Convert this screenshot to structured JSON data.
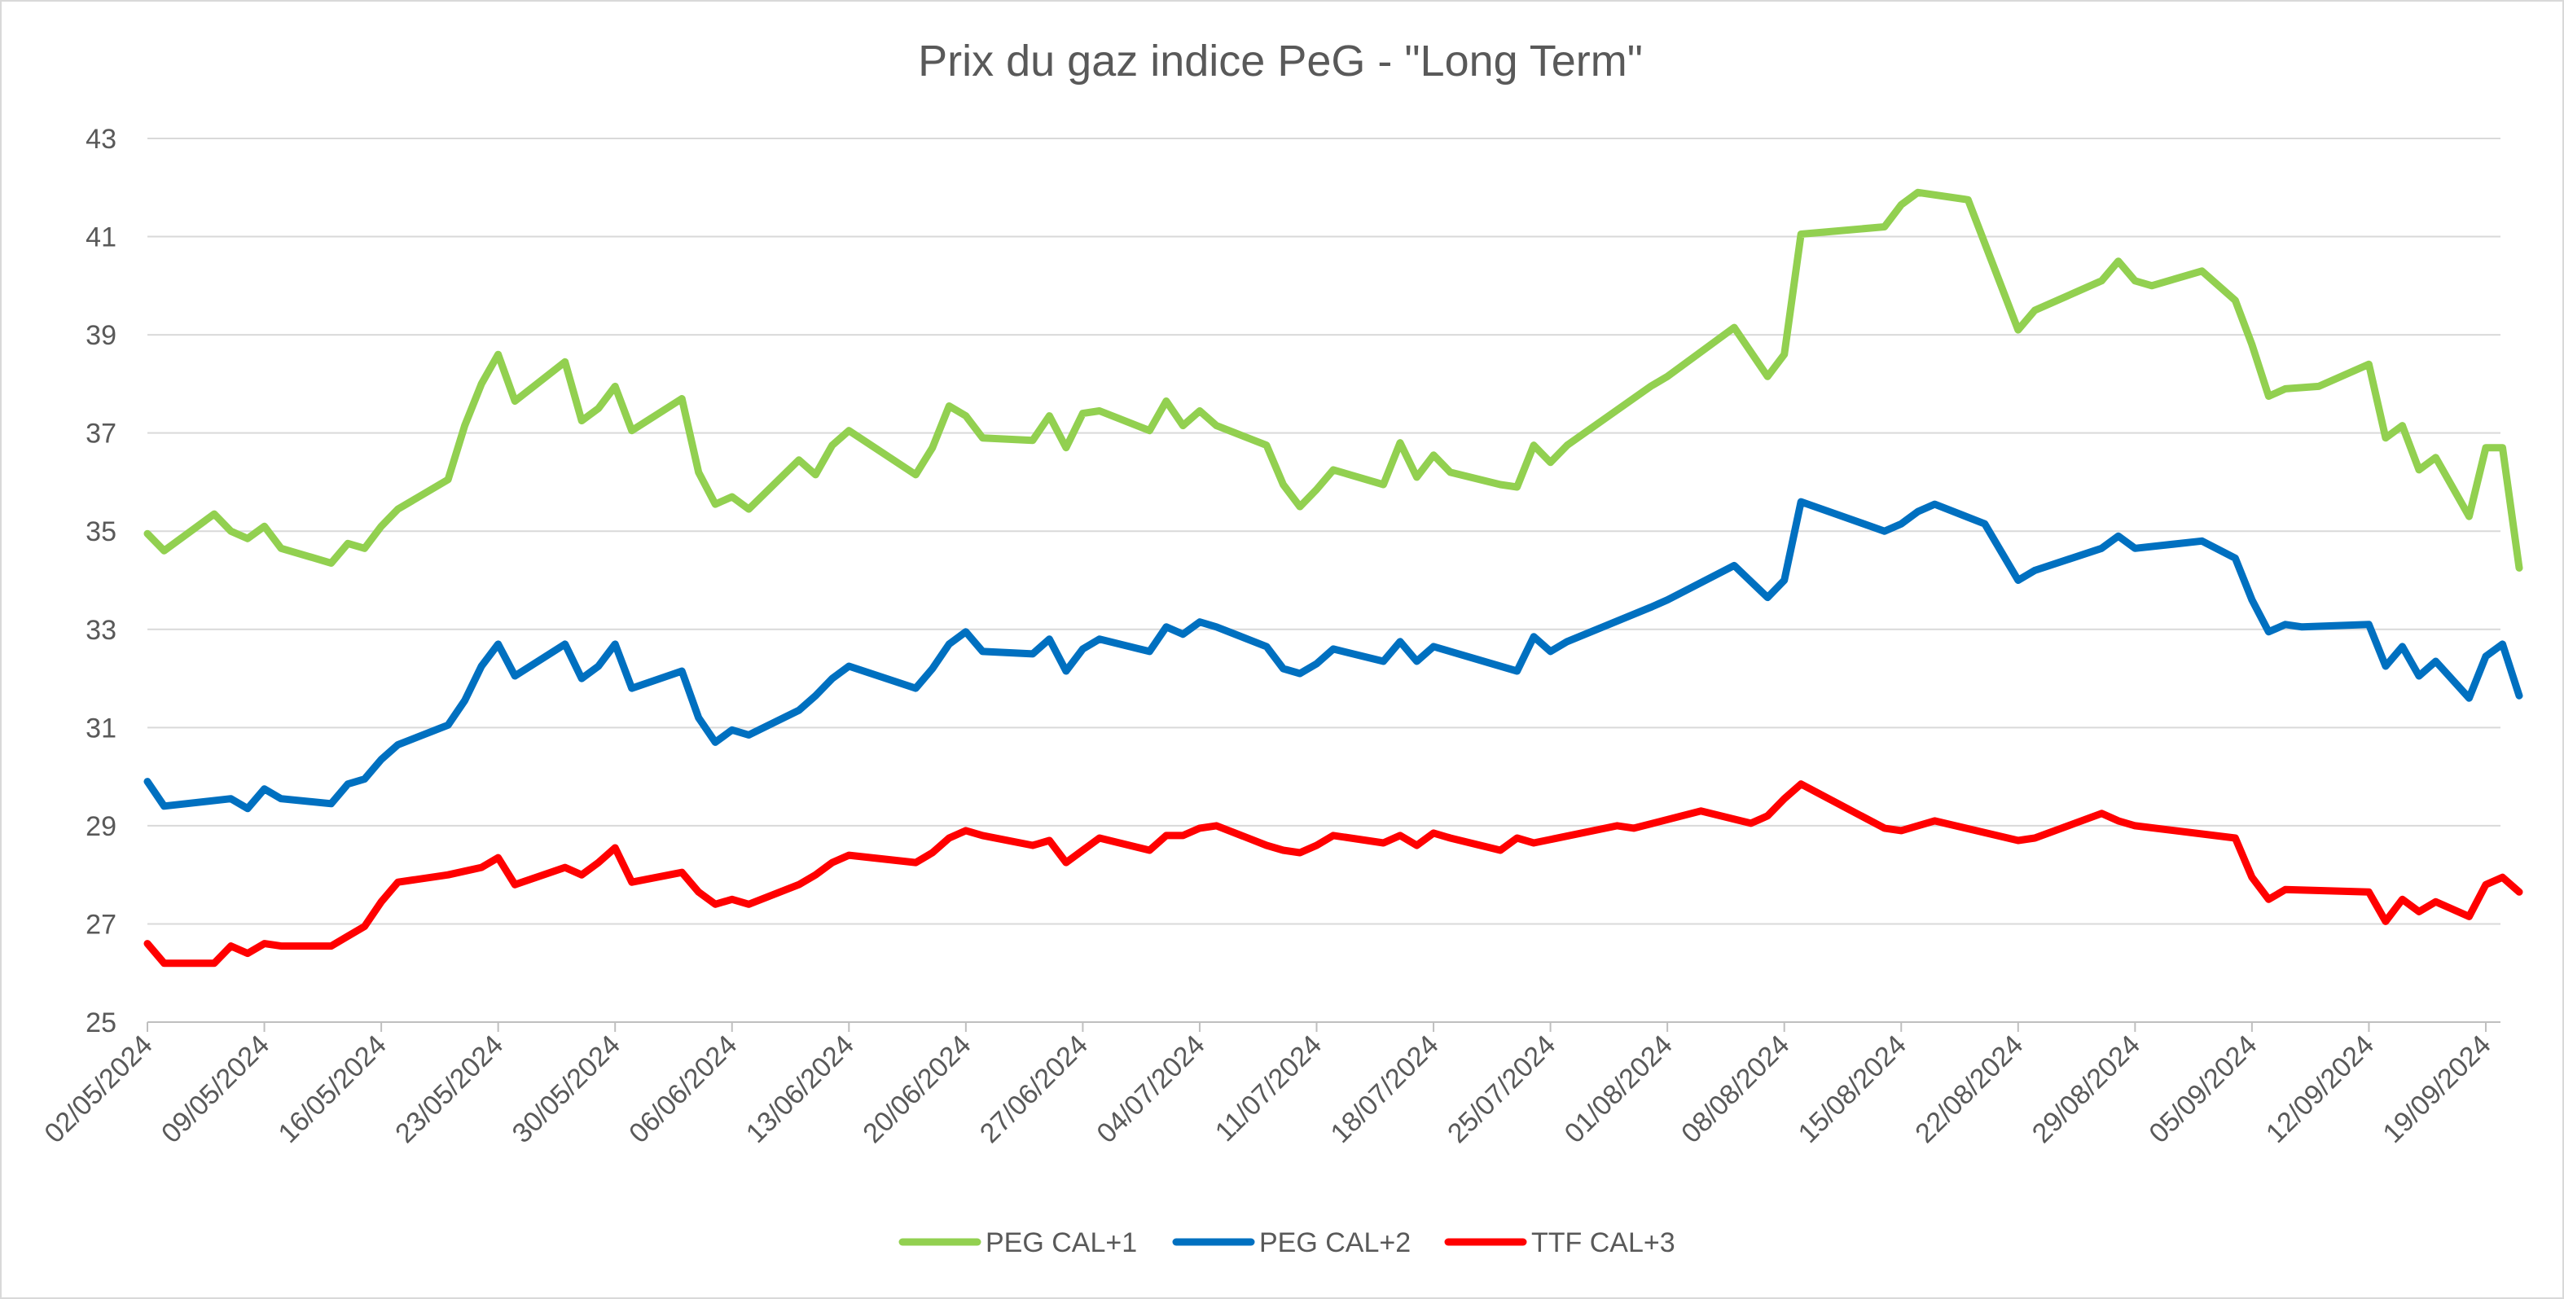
{
  "chart_data": {
    "type": "line",
    "title": "Prix du gaz indice PeG - \"Long Term\"",
    "xlabel": "",
    "ylabel": "",
    "ylim": [
      25,
      43
    ],
    "yticks": [
      "25",
      "27",
      "29",
      "31",
      "33",
      "35",
      "37",
      "39",
      "41",
      "43"
    ],
    "grid": true,
    "legend_position": "bottom",
    "x_start": "02/05/2024",
    "x_end": "19/09/2024",
    "xticks": [
      "02/05/2024",
      "09/05/2024",
      "16/05/2024",
      "23/05/2024",
      "30/05/2024",
      "06/06/2024",
      "13/06/2024",
      "20/06/2024",
      "27/06/2024",
      "04/07/2024",
      "11/07/2024",
      "18/07/2024",
      "25/07/2024",
      "01/08/2024",
      "08/08/2024",
      "15/08/2024",
      "22/08/2024",
      "29/08/2024",
      "05/09/2024",
      "12/09/2024",
      "19/09/2024"
    ],
    "series": [
      {
        "name": "PEG CAL+1",
        "color": "#92d050",
        "points": [
          [
            "02/05/2024",
            34.95
          ],
          [
            "03/05/2024",
            34.6
          ],
          [
            "06/05/2024",
            35.35
          ],
          [
            "07/05/2024",
            35.0
          ],
          [
            "08/05/2024",
            34.85
          ],
          [
            "09/05/2024",
            35.1
          ],
          [
            "10/05/2024",
            34.65
          ],
          [
            "13/05/2024",
            34.35
          ],
          [
            "14/05/2024",
            34.75
          ],
          [
            "15/05/2024",
            34.65
          ],
          [
            "16/05/2024",
            35.1
          ],
          [
            "17/05/2024",
            35.45
          ],
          [
            "20/05/2024",
            36.05
          ],
          [
            "21/05/2024",
            37.15
          ],
          [
            "22/05/2024",
            38.0
          ],
          [
            "23/05/2024",
            38.6
          ],
          [
            "24/05/2024",
            37.65
          ],
          [
            "27/05/2024",
            38.45
          ],
          [
            "28/05/2024",
            37.25
          ],
          [
            "29/05/2024",
            37.5
          ],
          [
            "30/05/2024",
            37.95
          ],
          [
            "31/05/2024",
            37.05
          ],
          [
            "03/06/2024",
            37.7
          ],
          [
            "04/06/2024",
            36.2
          ],
          [
            "05/06/2024",
            35.55
          ],
          [
            "06/06/2024",
            35.7
          ],
          [
            "07/06/2024",
            35.45
          ],
          [
            "10/06/2024",
            36.45
          ],
          [
            "11/06/2024",
            36.15
          ],
          [
            "12/06/2024",
            36.75
          ],
          [
            "13/06/2024",
            37.05
          ],
          [
            "17/06/2024",
            36.15
          ],
          [
            "18/06/2024",
            36.7
          ],
          [
            "19/06/2024",
            37.55
          ],
          [
            "20/06/2024",
            37.35
          ],
          [
            "21/06/2024",
            36.9
          ],
          [
            "24/06/2024",
            36.85
          ],
          [
            "25/06/2024",
            37.35
          ],
          [
            "26/06/2024",
            36.7
          ],
          [
            "27/06/2024",
            37.4
          ],
          [
            "28/06/2024",
            37.45
          ],
          [
            "01/07/2024",
            37.05
          ],
          [
            "02/07/2024",
            37.65
          ],
          [
            "03/07/2024",
            37.15
          ],
          [
            "04/07/2024",
            37.45
          ],
          [
            "05/07/2024",
            37.15
          ],
          [
            "08/07/2024",
            36.75
          ],
          [
            "09/07/2024",
            35.95
          ],
          [
            "10/07/2024",
            35.5
          ],
          [
            "11/07/2024",
            35.85
          ],
          [
            "12/07/2024",
            36.25
          ],
          [
            "15/07/2024",
            35.95
          ],
          [
            "16/07/2024",
            36.8
          ],
          [
            "17/07/2024",
            36.1
          ],
          [
            "18/07/2024",
            36.55
          ],
          [
            "19/07/2024",
            36.2
          ],
          [
            "22/07/2024",
            35.95
          ],
          [
            "23/07/2024",
            35.9
          ],
          [
            "24/07/2024",
            36.75
          ],
          [
            "25/07/2024",
            36.4
          ],
          [
            "26/07/2024",
            36.75
          ],
          [
            "31/07/2024",
            37.95
          ],
          [
            "01/08/2024",
            38.15
          ],
          [
            "05/08/2024",
            39.15
          ],
          [
            "07/08/2024",
            38.15
          ],
          [
            "08/08/2024",
            38.6
          ],
          [
            "09/08/2024",
            41.05
          ],
          [
            "14/08/2024",
            41.2
          ],
          [
            "15/08/2024",
            41.65
          ],
          [
            "16/08/2024",
            41.9
          ],
          [
            "19/08/2024",
            41.75
          ],
          [
            "22/08/2024",
            39.1
          ],
          [
            "23/08/2024",
            39.5
          ],
          [
            "27/08/2024",
            40.1
          ],
          [
            "28/08/2024",
            40.5
          ],
          [
            "29/08/2024",
            40.1
          ],
          [
            "30/08/2024",
            40.0
          ],
          [
            "02/09/2024",
            40.3
          ],
          [
            "04/09/2024",
            39.7
          ],
          [
            "05/09/2024",
            38.8
          ],
          [
            "06/09/2024",
            37.75
          ],
          [
            "07/09/2024",
            37.9
          ],
          [
            "09/09/2024",
            37.95
          ],
          [
            "12/09/2024",
            38.4
          ],
          [
            "13/09/2024",
            36.9
          ],
          [
            "14/09/2024",
            37.15
          ],
          [
            "15/09/2024",
            36.25
          ],
          [
            "16/09/2024",
            36.5
          ],
          [
            "18/09/2024",
            35.3
          ],
          [
            "19/09/2024",
            36.7
          ],
          [
            "20/09/2024",
            36.7
          ],
          [
            "21/09/2024",
            34.25
          ]
        ]
      },
      {
        "name": "PEG CAL+2",
        "color": "#0070c0",
        "points": [
          [
            "02/05/2024",
            29.9
          ],
          [
            "03/05/2024",
            29.4
          ],
          [
            "07/05/2024",
            29.55
          ],
          [
            "08/05/2024",
            29.35
          ],
          [
            "09/05/2024",
            29.75
          ],
          [
            "10/05/2024",
            29.55
          ],
          [
            "13/05/2024",
            29.45
          ],
          [
            "14/05/2024",
            29.85
          ],
          [
            "15/05/2024",
            29.95
          ],
          [
            "16/05/2024",
            30.35
          ],
          [
            "17/05/2024",
            30.65
          ],
          [
            "20/05/2024",
            31.05
          ],
          [
            "21/05/2024",
            31.55
          ],
          [
            "22/05/2024",
            32.25
          ],
          [
            "23/05/2024",
            32.7
          ],
          [
            "24/05/2024",
            32.05
          ],
          [
            "27/05/2024",
            32.7
          ],
          [
            "28/05/2024",
            32.0
          ],
          [
            "29/05/2024",
            32.25
          ],
          [
            "30/05/2024",
            32.7
          ],
          [
            "31/05/2024",
            31.8
          ],
          [
            "03/06/2024",
            32.15
          ],
          [
            "04/06/2024",
            31.2
          ],
          [
            "05/06/2024",
            30.7
          ],
          [
            "06/06/2024",
            30.95
          ],
          [
            "07/06/2024",
            30.85
          ],
          [
            "10/06/2024",
            31.35
          ],
          [
            "11/06/2024",
            31.65
          ],
          [
            "12/06/2024",
            32.0
          ],
          [
            "13/06/2024",
            32.25
          ],
          [
            "17/06/2024",
            31.8
          ],
          [
            "18/06/2024",
            32.2
          ],
          [
            "19/06/2024",
            32.7
          ],
          [
            "20/06/2024",
            32.95
          ],
          [
            "21/06/2024",
            32.55
          ],
          [
            "24/06/2024",
            32.5
          ],
          [
            "25/06/2024",
            32.8
          ],
          [
            "26/06/2024",
            32.15
          ],
          [
            "27/06/2024",
            32.6
          ],
          [
            "28/06/2024",
            32.8
          ],
          [
            "01/07/2024",
            32.55
          ],
          [
            "02/07/2024",
            33.05
          ],
          [
            "03/07/2024",
            32.9
          ],
          [
            "04/07/2024",
            33.15
          ],
          [
            "05/07/2024",
            33.05
          ],
          [
            "08/07/2024",
            32.65
          ],
          [
            "09/07/2024",
            32.2
          ],
          [
            "10/07/2024",
            32.1
          ],
          [
            "11/07/2024",
            32.3
          ],
          [
            "12/07/2024",
            32.6
          ],
          [
            "15/07/2024",
            32.35
          ],
          [
            "16/07/2024",
            32.75
          ],
          [
            "17/07/2024",
            32.35
          ],
          [
            "18/07/2024",
            32.65
          ],
          [
            "19/07/2024",
            32.55
          ],
          [
            "22/07/2024",
            32.25
          ],
          [
            "23/07/2024",
            32.15
          ],
          [
            "24/07/2024",
            32.85
          ],
          [
            "25/07/2024",
            32.55
          ],
          [
            "26/07/2024",
            32.75
          ],
          [
            "31/07/2024",
            33.45
          ],
          [
            "01/08/2024",
            33.6
          ],
          [
            "05/08/2024",
            34.3
          ],
          [
            "07/08/2024",
            33.65
          ],
          [
            "08/08/2024",
            34.0
          ],
          [
            "09/08/2024",
            35.6
          ],
          [
            "14/08/2024",
            35.0
          ],
          [
            "15/08/2024",
            35.15
          ],
          [
            "16/08/2024",
            35.4
          ],
          [
            "17/08/2024",
            35.55
          ],
          [
            "20/08/2024",
            35.15
          ],
          [
            "22/08/2024",
            34.0
          ],
          [
            "23/08/2024",
            34.2
          ],
          [
            "27/08/2024",
            34.65
          ],
          [
            "28/08/2024",
            34.9
          ],
          [
            "29/08/2024",
            34.65
          ],
          [
            "02/09/2024",
            34.8
          ],
          [
            "04/09/2024",
            34.45
          ],
          [
            "05/09/2024",
            33.6
          ],
          [
            "06/09/2024",
            32.95
          ],
          [
            "07/09/2024",
            33.1
          ],
          [
            "08/09/2024",
            33.05
          ],
          [
            "12/09/2024",
            33.1
          ],
          [
            "13/09/2024",
            32.25
          ],
          [
            "14/09/2024",
            32.65
          ],
          [
            "15/09/2024",
            32.05
          ],
          [
            "16/09/2024",
            32.35
          ],
          [
            "18/09/2024",
            31.6
          ],
          [
            "19/09/2024",
            32.45
          ],
          [
            "20/09/2024",
            32.7
          ],
          [
            "21/09/2024",
            31.65
          ]
        ]
      },
      {
        "name": "TTF CAL+3",
        "color": "#ff0000",
        "points": [
          [
            "02/05/2024",
            26.6
          ],
          [
            "03/05/2024",
            26.2
          ],
          [
            "06/05/2024",
            26.2
          ],
          [
            "07/05/2024",
            26.55
          ],
          [
            "08/05/2024",
            26.4
          ],
          [
            "09/05/2024",
            26.6
          ],
          [
            "10/05/2024",
            26.55
          ],
          [
            "13/05/2024",
            26.55
          ],
          [
            "14/05/2024",
            26.75
          ],
          [
            "15/05/2024",
            26.95
          ],
          [
            "16/05/2024",
            27.45
          ],
          [
            "17/05/2024",
            27.85
          ],
          [
            "20/05/2024",
            28.0
          ],
          [
            "22/05/2024",
            28.15
          ],
          [
            "23/05/2024",
            28.35
          ],
          [
            "24/05/2024",
            27.8
          ],
          [
            "27/05/2024",
            28.15
          ],
          [
            "28/05/2024",
            28.0
          ],
          [
            "29/05/2024",
            28.25
          ],
          [
            "30/05/2024",
            28.55
          ],
          [
            "31/05/2024",
            27.85
          ],
          [
            "03/06/2024",
            28.05
          ],
          [
            "04/06/2024",
            27.65
          ],
          [
            "05/06/2024",
            27.4
          ],
          [
            "06/06/2024",
            27.5
          ],
          [
            "07/06/2024",
            27.4
          ],
          [
            "10/06/2024",
            27.8
          ],
          [
            "11/06/2024",
            28.0
          ],
          [
            "12/06/2024",
            28.25
          ],
          [
            "13/06/2024",
            28.4
          ],
          [
            "17/06/2024",
            28.25
          ],
          [
            "18/06/2024",
            28.45
          ],
          [
            "19/06/2024",
            28.75
          ],
          [
            "20/06/2024",
            28.9
          ],
          [
            "21/06/2024",
            28.8
          ],
          [
            "24/06/2024",
            28.6
          ],
          [
            "25/06/2024",
            28.7
          ],
          [
            "26/06/2024",
            28.25
          ],
          [
            "27/06/2024",
            28.5
          ],
          [
            "28/06/2024",
            28.75
          ],
          [
            "01/07/2024",
            28.5
          ],
          [
            "02/07/2024",
            28.8
          ],
          [
            "03/07/2024",
            28.8
          ],
          [
            "04/07/2024",
            28.95
          ],
          [
            "05/07/2024",
            29.0
          ],
          [
            "08/07/2024",
            28.6
          ],
          [
            "09/07/2024",
            28.5
          ],
          [
            "10/07/2024",
            28.45
          ],
          [
            "11/07/2024",
            28.6
          ],
          [
            "12/07/2024",
            28.8
          ],
          [
            "15/07/2024",
            28.65
          ],
          [
            "16/07/2024",
            28.8
          ],
          [
            "17/07/2024",
            28.6
          ],
          [
            "18/07/2024",
            28.85
          ],
          [
            "19/07/2024",
            28.75
          ],
          [
            "22/07/2024",
            28.5
          ],
          [
            "23/07/2024",
            28.75
          ],
          [
            "24/07/2024",
            28.65
          ],
          [
            "29/07/2024",
            29.0
          ],
          [
            "30/07/2024",
            28.95
          ],
          [
            "03/08/2024",
            29.3
          ],
          [
            "06/08/2024",
            29.05
          ],
          [
            "07/08/2024",
            29.2
          ],
          [
            "08/08/2024",
            29.55
          ],
          [
            "09/08/2024",
            29.85
          ],
          [
            "14/08/2024",
            28.95
          ],
          [
            "15/08/2024",
            28.9
          ],
          [
            "17/08/2024",
            29.1
          ],
          [
            "22/08/2024",
            28.7
          ],
          [
            "23/08/2024",
            28.75
          ],
          [
            "27/08/2024",
            29.25
          ],
          [
            "28/08/2024",
            29.1
          ],
          [
            "29/08/2024",
            29.0
          ],
          [
            "04/09/2024",
            28.75
          ],
          [
            "05/09/2024",
            27.95
          ],
          [
            "06/09/2024",
            27.5
          ],
          [
            "07/09/2024",
            27.7
          ],
          [
            "12/09/2024",
            27.65
          ],
          [
            "13/09/2024",
            27.05
          ],
          [
            "14/09/2024",
            27.5
          ],
          [
            "15/09/2024",
            27.25
          ],
          [
            "16/09/2024",
            27.45
          ],
          [
            "18/09/2024",
            27.15
          ],
          [
            "19/09/2024",
            27.8
          ],
          [
            "20/09/2024",
            27.95
          ],
          [
            "21/09/2024",
            27.65
          ]
        ]
      }
    ]
  }
}
